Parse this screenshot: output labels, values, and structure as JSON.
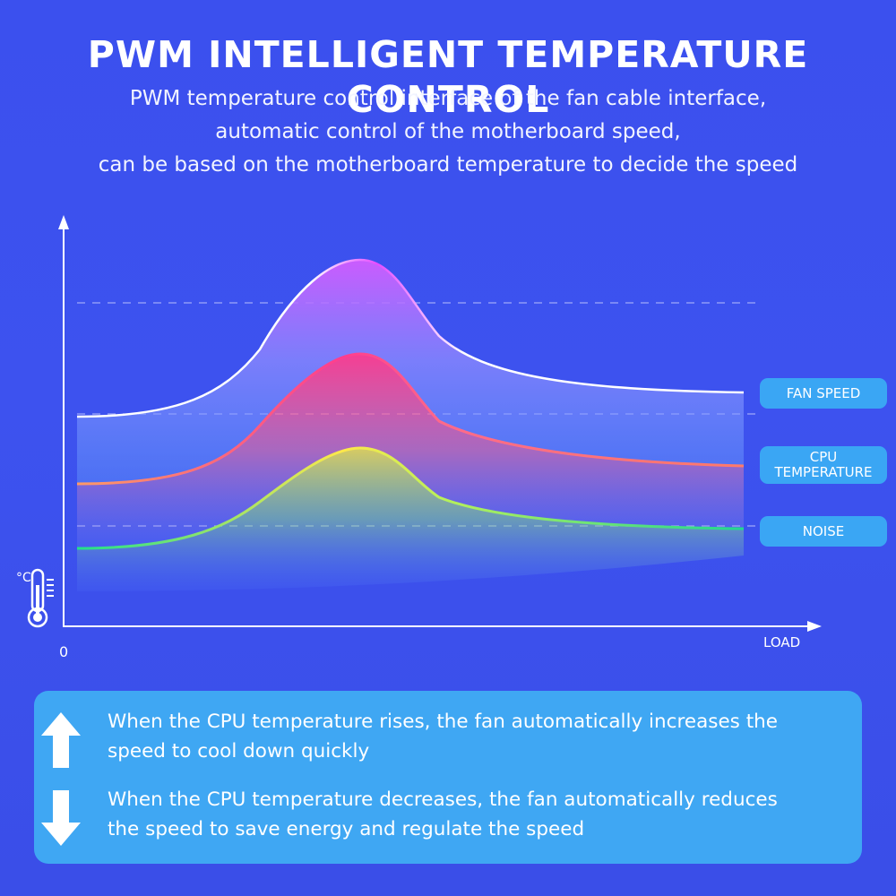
{
  "header": {
    "title": "PWM INTELLIGENT TEMPERATURE CONTROL",
    "subtitle_lines": [
      "PWM temperature control interface of the fan cable interface,",
      "automatic control of the motherboard speed,",
      "can be based on the motherboard temperature to decide the speed"
    ]
  },
  "chart_data": {
    "type": "line",
    "xlabel": "LOAD",
    "x_origin_label": "0",
    "y_unit": "°C",
    "series": [
      {
        "name": "FAN SPEED",
        "name_lines": [
          "FAN SPEED"
        ],
        "color": "#ffffff",
        "peak_color": "#e54cff"
      },
      {
        "name": "CPU TEMPERATURE",
        "name_lines": [
          "CPU",
          "TEMPERATURE"
        ],
        "color": "#ff7a66",
        "peak_color": "#ff2d8a"
      },
      {
        "name": "NOISE",
        "name_lines": [
          "NOISE"
        ],
        "color": "#29e08a",
        "peak_color": "#ffe84a"
      }
    ],
    "grid": "dashed"
  },
  "info": {
    "rows": [
      {
        "icon": "arrow-up-icon",
        "text_lines": [
          "When the CPU temperature rises, the fan automatically increases the",
          "speed to cool down quickly"
        ]
      },
      {
        "icon": "arrow-down-icon",
        "text_lines": [
          "When the CPU temperature decreases, the fan automatically reduces",
          "the speed to save energy and regulate the speed"
        ]
      }
    ]
  },
  "colors": {
    "background": "#3c51ee",
    "panel": "#3fa7f3",
    "pill": "#3aa6f4"
  }
}
